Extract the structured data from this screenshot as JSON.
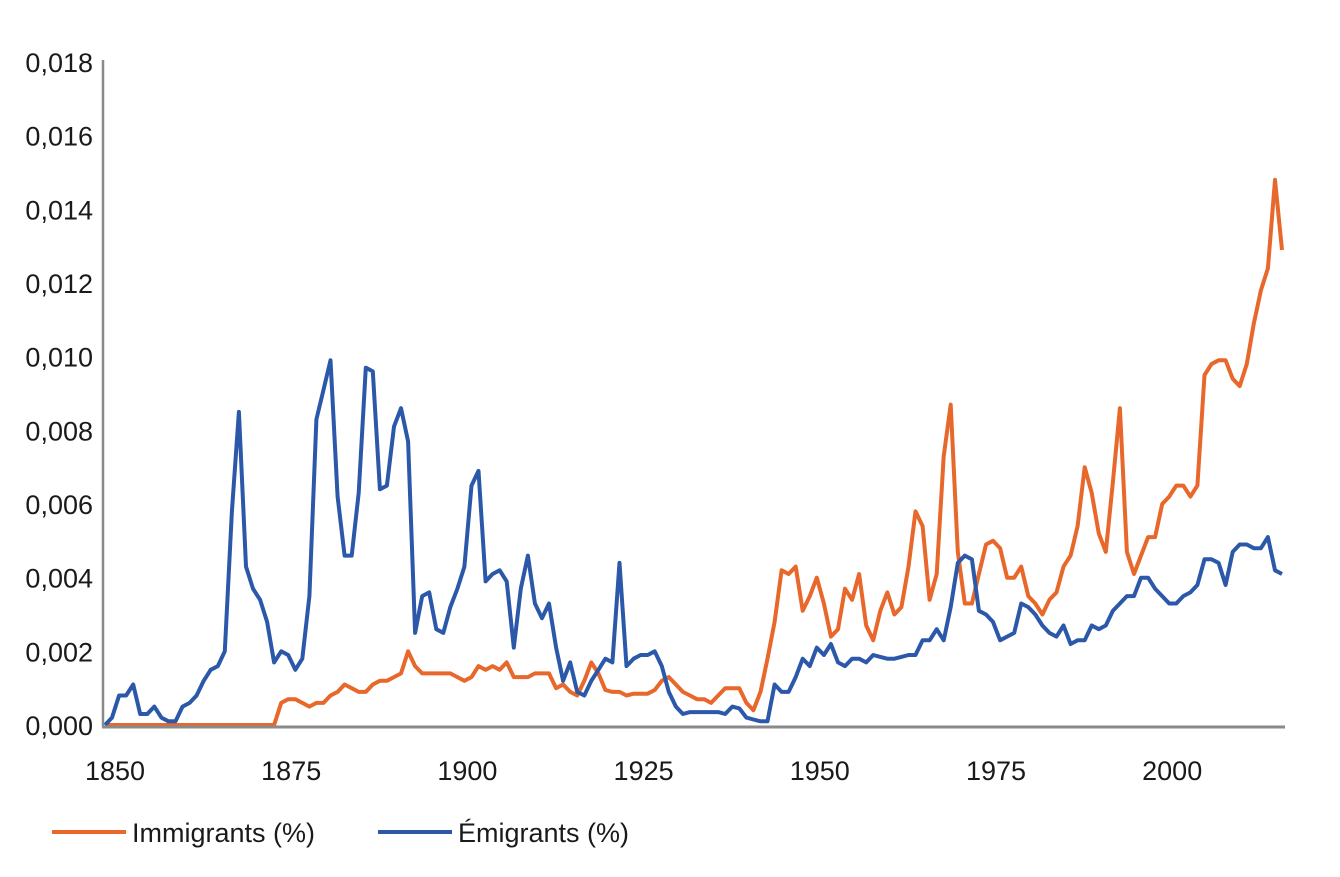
{
  "chart_data": {
    "type": "line",
    "title": "",
    "xlabel": "",
    "ylabel": "",
    "x_start": 1850,
    "x_end": 2017,
    "xlim": [
      1850,
      2017
    ],
    "ylim": [
      0,
      0.018
    ],
    "grid": false,
    "legend_position": "bottom-left",
    "x_ticks": [
      "1850",
      "1875",
      "1900",
      "1925",
      "1950",
      "1975",
      "2000"
    ],
    "x_tick_values": [
      1850,
      1875,
      1900,
      1925,
      1950,
      1975,
      2000
    ],
    "y_ticks": [
      "0,000",
      "0,002",
      "0,004",
      "0,006",
      "0,008",
      "0,010",
      "0,012",
      "0,014",
      "0,016",
      "0,018"
    ],
    "y_tick_values": [
      0,
      0.002,
      0.004,
      0.006,
      0.008,
      0.01,
      0.012,
      0.014,
      0.016,
      0.018
    ],
    "series": [
      {
        "name": "Immigrants (%)",
        "color": "#E8672A",
        "values": [
          0,
          0,
          0,
          0,
          0,
          0,
          0,
          0,
          0,
          0,
          0,
          0,
          0,
          0,
          0,
          0,
          0,
          0,
          0,
          0,
          0,
          0,
          0,
          0,
          0,
          0.0006,
          0.0007,
          0.0007,
          0.0006,
          0.0005,
          0.0006,
          0.0006,
          0.0008,
          0.0009,
          0.0011,
          0.001,
          0.0009,
          0.0009,
          0.0011,
          0.0012,
          0.0012,
          0.0013,
          0.0014,
          0.002,
          0.0016,
          0.0014,
          0.0014,
          0.0014,
          0.0014,
          0.0014,
          0.0013,
          0.0012,
          0.0013,
          0.0016,
          0.0015,
          0.0016,
          0.0015,
          0.0017,
          0.0013,
          0.0013,
          0.0013,
          0.0014,
          0.0014,
          0.0014,
          0.001,
          0.0011,
          0.0009,
          0.0008,
          0.0012,
          0.0017,
          0.0014,
          0.00095,
          0.0009,
          0.0009,
          0.0008,
          0.00085,
          0.00085,
          0.00085,
          0.00095,
          0.0012,
          0.0013,
          0.0011,
          0.0009,
          0.0008,
          0.0007,
          0.0007,
          0.0006,
          0.0008,
          0.001,
          0.001,
          0.001,
          0.0006,
          0.0004,
          0.0009,
          0.0018,
          0.0028,
          0.0042,
          0.0041,
          0.0043,
          0.0031,
          0.0035,
          0.004,
          0.0033,
          0.0024,
          0.0026,
          0.0037,
          0.0034,
          0.0041,
          0.0027,
          0.0023,
          0.0031,
          0.0036,
          0.003,
          0.0032,
          0.0043,
          0.0058,
          0.0054,
          0.0034,
          0.0041,
          0.0073,
          0.0087,
          0.0047,
          0.0033,
          0.0033,
          0.0041,
          0.0049,
          0.005,
          0.0048,
          0.004,
          0.004,
          0.0043,
          0.0035,
          0.0033,
          0.003,
          0.0034,
          0.0036,
          0.0043,
          0.0046,
          0.0054,
          0.007,
          0.0063,
          0.0052,
          0.0047,
          0.0066,
          0.0086,
          0.0047,
          0.0041,
          0.0046,
          0.0051,
          0.0051,
          0.006,
          0.0062,
          0.0065,
          0.0065,
          0.0062,
          0.0065,
          0.0095,
          0.0098,
          0.0099,
          0.0099,
          0.0094,
          0.0092,
          0.0098,
          0.0109,
          0.0118,
          0.0124,
          0.0148,
          0.0129
        ]
      },
      {
        "name": "Émigrants (%)",
        "color": "#2B58A8",
        "values": [
          0,
          0.0002,
          0.0008,
          0.0008,
          0.0011,
          0.0003,
          0.0003,
          0.0005,
          0.0002,
          0.0001,
          0.0001,
          0.0005,
          0.0006,
          0.0008,
          0.0012,
          0.0015,
          0.0016,
          0.002,
          0.0058,
          0.0085,
          0.0043,
          0.0037,
          0.0034,
          0.0028,
          0.0017,
          0.002,
          0.0019,
          0.0015,
          0.0018,
          0.0035,
          0.0083,
          0.0091,
          0.0099,
          0.0062,
          0.0046,
          0.0046,
          0.0063,
          0.0097,
          0.0096,
          0.0064,
          0.0065,
          0.0081,
          0.0086,
          0.0077,
          0.0025,
          0.0035,
          0.0036,
          0.0026,
          0.0025,
          0.0032,
          0.0037,
          0.0043,
          0.0065,
          0.0069,
          0.0039,
          0.0041,
          0.0042,
          0.0039,
          0.0021,
          0.0037,
          0.0046,
          0.0033,
          0.0029,
          0.0033,
          0.0021,
          0.0012,
          0.0017,
          0.0009,
          0.0008,
          0.0012,
          0.0015,
          0.0018,
          0.0017,
          0.0044,
          0.0016,
          0.0018,
          0.0019,
          0.0019,
          0.002,
          0.0016,
          0.0009,
          0.0005,
          0.0003,
          0.00035,
          0.00035,
          0.00035,
          0.00035,
          0.00035,
          0.0003,
          0.0005,
          0.00045,
          0.0002,
          0.00015,
          0.0001,
          0.0001,
          0.0011,
          0.0009,
          0.0009,
          0.0013,
          0.0018,
          0.0016,
          0.0021,
          0.0019,
          0.0022,
          0.0017,
          0.0016,
          0.0018,
          0.0018,
          0.0017,
          0.0019,
          0.00185,
          0.0018,
          0.0018,
          0.00185,
          0.0019,
          0.0019,
          0.0023,
          0.0023,
          0.0026,
          0.0023,
          0.0032,
          0.0044,
          0.0046,
          0.0045,
          0.0031,
          0.003,
          0.0028,
          0.0023,
          0.0024,
          0.0025,
          0.0033,
          0.0032,
          0.003,
          0.0027,
          0.0025,
          0.0024,
          0.0027,
          0.0022,
          0.0023,
          0.0023,
          0.0027,
          0.0026,
          0.0027,
          0.0031,
          0.0033,
          0.0035,
          0.0035,
          0.004,
          0.004,
          0.0037,
          0.0035,
          0.0033,
          0.0033,
          0.0035,
          0.0036,
          0.0038,
          0.0045,
          0.0045,
          0.0044,
          0.0038,
          0.0047,
          0.0049,
          0.0049,
          0.0048,
          0.0048,
          0.0051,
          0.0042,
          0.0041
        ]
      }
    ]
  }
}
